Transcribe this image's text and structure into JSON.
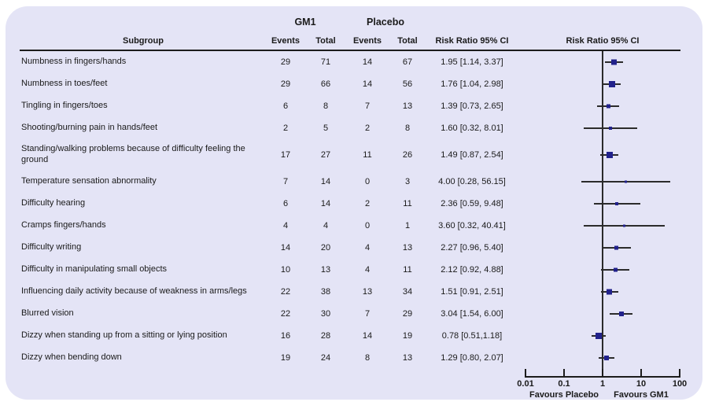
{
  "header": {
    "group1": "GM1",
    "group2": "Placebo",
    "col_subgroup": "Subgroup",
    "col_events": "Events",
    "col_total": "Total",
    "col_rr": "Risk Ratio 95% CI",
    "plot_title": "Risk Ratio 95% CI"
  },
  "axis": {
    "scale": "log",
    "ticks": [
      "0.01",
      "0.1",
      "1",
      "10",
      "100"
    ],
    "tick_values": [
      0.01,
      0.1,
      1,
      10,
      100
    ],
    "left_label": "Favours Placebo",
    "right_label": "Favours GM1"
  },
  "colors": {
    "card_bg": "#e4e4f6",
    "marker": "#21218b",
    "line": "#2b2b2b",
    "text": "#1a1a1a"
  },
  "chart_data": {
    "type": "forest",
    "x_range": [
      0.01,
      100
    ],
    "reference_line": 1,
    "rows": [
      {
        "subgroup": "Numbness in fingers/hands",
        "gm1_events": 29,
        "gm1_total": 71,
        "placebo_events": 14,
        "placebo_total": 67,
        "rr": 1.95,
        "ci_low": 1.14,
        "ci_high": 3.37,
        "rr_label": "1.95 [1.14, 3.37]",
        "marker": 7,
        "tall": false
      },
      {
        "subgroup": "Numbness in toes/feet",
        "gm1_events": 29,
        "gm1_total": 66,
        "placebo_events": 14,
        "placebo_total": 56,
        "rr": 1.76,
        "ci_low": 1.04,
        "ci_high": 2.98,
        "rr_label": "1.76 [1.04, 2.98]",
        "marker": 8,
        "tall": false
      },
      {
        "subgroup": "Tingling in fingers/toes",
        "gm1_events": 6,
        "gm1_total": 8,
        "placebo_events": 7,
        "placebo_total": 13,
        "rr": 1.39,
        "ci_low": 0.73,
        "ci_high": 2.65,
        "rr_label": "1.39 [0.73, 2.65]",
        "marker": 5,
        "tall": false
      },
      {
        "subgroup": "Shooting/burning pain in hands/feet",
        "gm1_events": 2,
        "gm1_total": 5,
        "placebo_events": 2,
        "placebo_total": 8,
        "rr": 1.6,
        "ci_low": 0.32,
        "ci_high": 8.01,
        "rr_label": "1.60 [0.32, 8.01]",
        "marker": 4,
        "tall": false
      },
      {
        "subgroup": "Standing/walking problems because of difficulty feeling the ground",
        "gm1_events": 17,
        "gm1_total": 27,
        "placebo_events": 11,
        "placebo_total": 26,
        "rr": 1.49,
        "ci_low": 0.87,
        "ci_high": 2.54,
        "rr_label": "1.49 [0.87, 2.54]",
        "marker": 8,
        "tall": true
      },
      {
        "subgroup": "Temperature sensation abnormality",
        "gm1_events": 7,
        "gm1_total": 14,
        "placebo_events": 0,
        "placebo_total": 3,
        "rr": 4.0,
        "ci_low": 0.28,
        "ci_high": 56.15,
        "rr_label": "4.00 [0.28, 56.15]",
        "marker": 3,
        "tall": false
      },
      {
        "subgroup": "Difficulty hearing",
        "gm1_events": 6,
        "gm1_total": 14,
        "placebo_events": 2,
        "placebo_total": 11,
        "rr": 2.36,
        "ci_low": 0.59,
        "ci_high": 9.48,
        "rr_label": "2.36 [0.59, 9.48]",
        "marker": 4,
        "tall": false
      },
      {
        "subgroup": "Cramps fingers/hands",
        "gm1_events": 4,
        "gm1_total": 4,
        "placebo_events": 0,
        "placebo_total": 1,
        "rr": 3.6,
        "ci_low": 0.32,
        "ci_high": 40.41,
        "rr_label": "3.60 [0.32, 40.41]",
        "marker": 3,
        "tall": false
      },
      {
        "subgroup": "Difficulty writing",
        "gm1_events": 14,
        "gm1_total": 20,
        "placebo_events": 4,
        "placebo_total": 13,
        "rr": 2.27,
        "ci_low": 0.96,
        "ci_high": 5.4,
        "rr_label": "2.27 [0.96, 5.40]",
        "marker": 5,
        "tall": false
      },
      {
        "subgroup": "Difficulty in manipulating small objects",
        "gm1_events": 10,
        "gm1_total": 13,
        "placebo_events": 4,
        "placebo_total": 11,
        "rr": 2.12,
        "ci_low": 0.92,
        "ci_high": 4.88,
        "rr_label": "2.12 [0.92, 4.88]",
        "marker": 5,
        "tall": false
      },
      {
        "subgroup": "Influencing daily activity because of weakness in arms/legs",
        "gm1_events": 22,
        "gm1_total": 38,
        "placebo_events": 13,
        "placebo_total": 34,
        "rr": 1.51,
        "ci_low": 0.91,
        "ci_high": 2.51,
        "rr_label": "1.51 [0.91, 2.51]",
        "marker": 7,
        "tall": false
      },
      {
        "subgroup": "Blurred vision",
        "gm1_events": 22,
        "gm1_total": 30,
        "placebo_events": 7,
        "placebo_total": 29,
        "rr": 3.04,
        "ci_low": 1.54,
        "ci_high": 6.0,
        "rr_label": "3.04 [1.54, 6.00]",
        "marker": 6,
        "tall": false
      },
      {
        "subgroup": "Dizzy when standing up from a sitting or lying position",
        "gm1_events": 16,
        "gm1_total": 28,
        "placebo_events": 14,
        "placebo_total": 19,
        "rr": 0.78,
        "ci_low": 0.51,
        "ci_high": 1.18,
        "rr_label": "0.78 [0.51,1.18]",
        "marker": 8,
        "tall": false
      },
      {
        "subgroup": "Dizzy when bending down",
        "gm1_events": 19,
        "gm1_total": 24,
        "placebo_events": 8,
        "placebo_total": 13,
        "rr": 1.29,
        "ci_low": 0.8,
        "ci_high": 2.07,
        "rr_label": "1.29 [0.80, 2.07]",
        "marker": 6,
        "tall": false
      }
    ]
  }
}
